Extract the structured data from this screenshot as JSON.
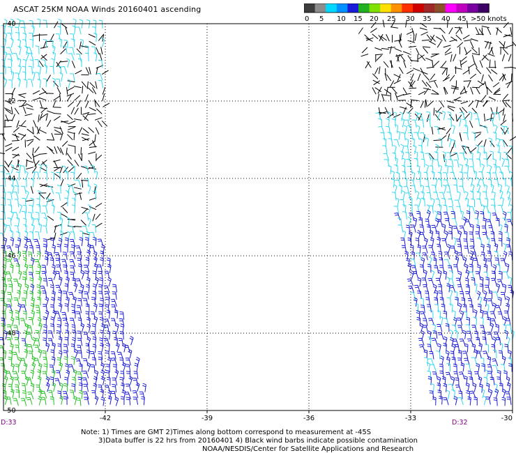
{
  "title": "ASCAT 25KM NOAA Winds 20160401 ascending",
  "scale": {
    "labels": [
      "0",
      "5",
      "10",
      "15",
      "20",
      "25",
      "30",
      "35",
      "40",
      "45",
      ">50 knots"
    ],
    "colors": [
      "#3c3c3c",
      "#8c8c8c",
      "#00d8ff",
      "#0090ff",
      "#1c1cd8",
      "#20b020",
      "#80e000",
      "#ffe000",
      "#ff9000",
      "#ff3000",
      "#d00000",
      "#a02828",
      "#8c5028",
      "#ff00ff",
      "#c000c0",
      "#7800a0",
      "#3c0064"
    ]
  },
  "map": {
    "lon_ticks": [
      "-42",
      "-39",
      "-36",
      "-33",
      "-30"
    ],
    "lat_ticks": [
      "-40",
      "-42",
      "-44",
      "-46",
      "-48",
      "-50"
    ],
    "lon_range": [
      -45,
      -30
    ],
    "lat_range": [
      -50,
      -40
    ],
    "time_labels": [
      "D:33",
      "D:32"
    ],
    "barb_colors": {
      "contaminated": "#000000",
      "light": "#30d8f0",
      "moderate": "#1a1ad8",
      "strong": "#22c022",
      "gale": "#ffe000"
    }
  },
  "notes": {
    "line1": "Note: 1) Times are GMT 2)Times along bottom correspond to measurement at -45S",
    "line2": "3)Data buffer is 22 hrs from 20160401 4) Black wind barbs indicate possible contamination",
    "line3": "NOAA/NESDIS/Center for Satellite Applications and Research"
  }
}
